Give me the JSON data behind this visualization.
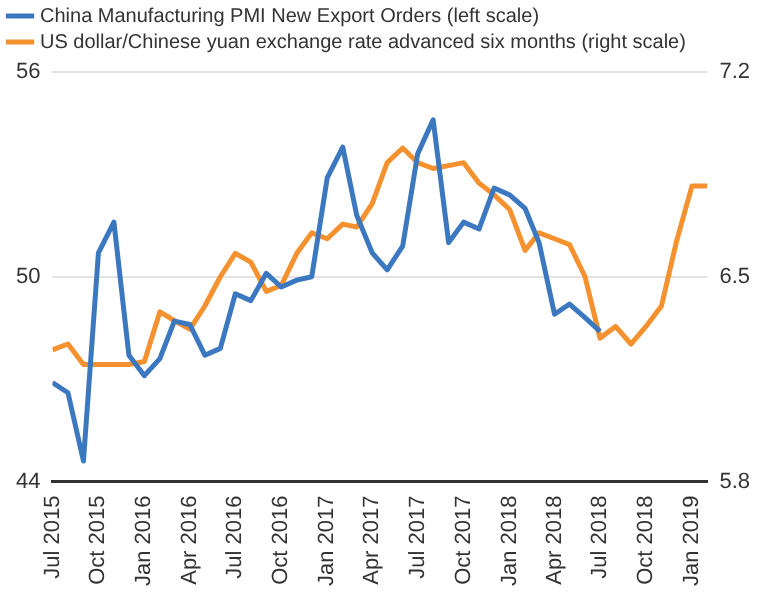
{
  "chart_data": {
    "type": "line",
    "x": [
      "2015-07",
      "2015-08",
      "2015-09",
      "2015-10",
      "2015-11",
      "2015-12",
      "2016-01",
      "2016-02",
      "2016-03",
      "2016-04",
      "2016-05",
      "2016-06",
      "2016-07",
      "2016-08",
      "2016-09",
      "2016-10",
      "2016-11",
      "2016-12",
      "2017-01",
      "2017-02",
      "2017-03",
      "2017-04",
      "2017-05",
      "2017-06",
      "2017-07",
      "2017-08",
      "2017-09",
      "2017-10",
      "2017-11",
      "2017-12",
      "2018-01",
      "2018-02",
      "2018-03",
      "2018-04",
      "2018-05",
      "2018-06",
      "2018-07",
      "2018-08",
      "2018-09",
      "2018-10",
      "2018-11",
      "2018-12",
      "2019-01",
      "2019-02"
    ],
    "series": [
      {
        "name": "China Manufacturing PMI New Export Orders (left scale)",
        "color": "#3b78c0",
        "values": [
          46.9,
          46.6,
          44.6,
          50.7,
          51.6,
          47.7,
          47.1,
          47.6,
          48.7,
          48.6,
          47.7,
          47.9,
          49.5,
          49.3,
          50.1,
          49.7,
          49.9,
          50.0,
          52.9,
          53.8,
          51.8,
          50.7,
          50.2,
          50.9,
          53.6,
          54.6,
          51.0,
          51.6,
          51.4,
          52.6,
          52.4,
          52.0,
          51.0,
          48.9,
          49.2,
          48.8,
          48.4,
          null,
          null,
          null,
          null,
          null,
          null,
          null
        ]
      },
      {
        "name": "US dollar/Chinese yuan exchange rate advanced six months (right scale)",
        "color": "#f5922f",
        "axis": "y2",
        "values": [
          6.25,
          6.27,
          6.2,
          6.2,
          6.2,
          6.2,
          6.21,
          6.38,
          6.35,
          6.32,
          6.4,
          6.5,
          6.58,
          6.55,
          6.45,
          6.47,
          6.58,
          6.65,
          6.63,
          6.68,
          6.67,
          6.75,
          6.89,
          6.94,
          6.89,
          6.87,
          6.88,
          6.89,
          6.82,
          6.78,
          6.73,
          6.59,
          6.65,
          6.63,
          6.61,
          6.5,
          6.29,
          6.33,
          6.27,
          6.33,
          6.4,
          6.62,
          6.81,
          6.81
        ]
      }
    ],
    "xlim": [
      "2015-07",
      "2019-02"
    ],
    "xticks": [
      {
        "value": "2015-07",
        "label": "Jul 2015"
      },
      {
        "value": "2015-10",
        "label": "Oct 2015"
      },
      {
        "value": "2016-01",
        "label": "Jan 2016"
      },
      {
        "value": "2016-04",
        "label": "Apr 2016"
      },
      {
        "value": "2016-07",
        "label": "Jul 2016"
      },
      {
        "value": "2016-10",
        "label": "Oct 2016"
      },
      {
        "value": "2017-01",
        "label": "Jan 2017"
      },
      {
        "value": "2017-04",
        "label": "Apr 2017"
      },
      {
        "value": "2017-07",
        "label": "Jul 2017"
      },
      {
        "value": "2017-10",
        "label": "Oct 2017"
      },
      {
        "value": "2018-01",
        "label": "Jan 2018"
      },
      {
        "value": "2018-04",
        "label": "Apr 2018"
      },
      {
        "value": "2018-07",
        "label": "Jul 2018"
      },
      {
        "value": "2018-10",
        "label": "Oct 2018"
      },
      {
        "value": "2019-01",
        "label": "Jan 2019"
      }
    ],
    "ylim": [
      44,
      56
    ],
    "yticks": [
      44,
      50,
      56
    ],
    "y2lim": [
      5.8,
      7.2
    ],
    "y2ticks": [
      5.8,
      6.5,
      7.2
    ],
    "grid": "y",
    "legend": "top left",
    "marker": "none",
    "line_style": "solid"
  }
}
